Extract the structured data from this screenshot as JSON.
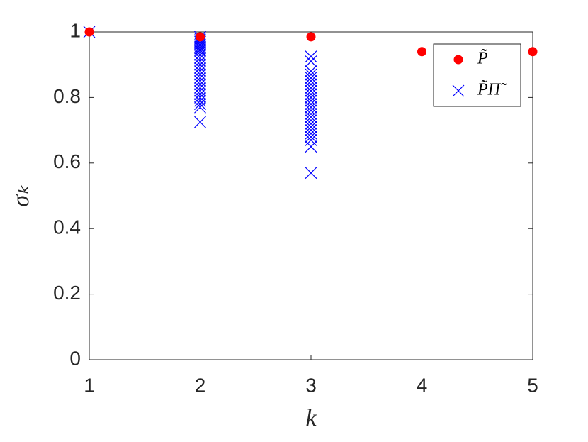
{
  "chart_data": {
    "type": "scatter",
    "xlabel": "k",
    "ylabel": "σₖ",
    "xlim": [
      1,
      5
    ],
    "xticks": [
      1,
      2,
      3,
      4,
      5
    ],
    "ylim": [
      0,
      1
    ],
    "yticks": [
      0,
      0.2,
      0.4,
      0.6,
      0.8,
      1
    ],
    "legend": "upper right",
    "series": [
      {
        "name": "P̃",
        "color": "#ff0000",
        "marker": "dot",
        "x": [
          1,
          2,
          3,
          4,
          5
        ],
        "values": [
          1,
          0.985,
          0.985,
          0.94,
          0.94
        ]
      },
      {
        "name": "P̃Π̃",
        "color": "#0000ff",
        "marker": "x",
        "x": [
          1,
          2,
          2,
          2,
          2,
          2,
          2,
          2,
          2,
          2,
          2,
          2,
          2,
          2,
          2,
          2,
          2,
          2,
          2,
          2,
          2,
          2,
          2,
          2,
          2,
          2,
          2,
          2,
          2,
          3,
          3,
          3,
          3,
          3,
          3,
          3,
          3,
          3,
          3,
          3,
          3,
          3,
          3,
          3,
          3,
          3,
          3,
          3,
          3,
          3,
          3,
          3,
          3,
          3,
          3
        ],
        "values": [
          1,
          0.985,
          0.98,
          0.975,
          0.97,
          0.965,
          0.96,
          0.955,
          0.95,
          0.945,
          0.94,
          0.93,
          0.92,
          0.91,
          0.9,
          0.89,
          0.88,
          0.87,
          0.86,
          0.85,
          0.84,
          0.83,
          0.82,
          0.81,
          0.8,
          0.79,
          0.78,
          0.77,
          0.725,
          0.925,
          0.91,
          0.88,
          0.87,
          0.86,
          0.85,
          0.84,
          0.83,
          0.82,
          0.81,
          0.8,
          0.79,
          0.78,
          0.77,
          0.76,
          0.75,
          0.74,
          0.73,
          0.72,
          0.71,
          0.7,
          0.69,
          0.68,
          0.67,
          0.65,
          0.57
        ]
      }
    ]
  }
}
